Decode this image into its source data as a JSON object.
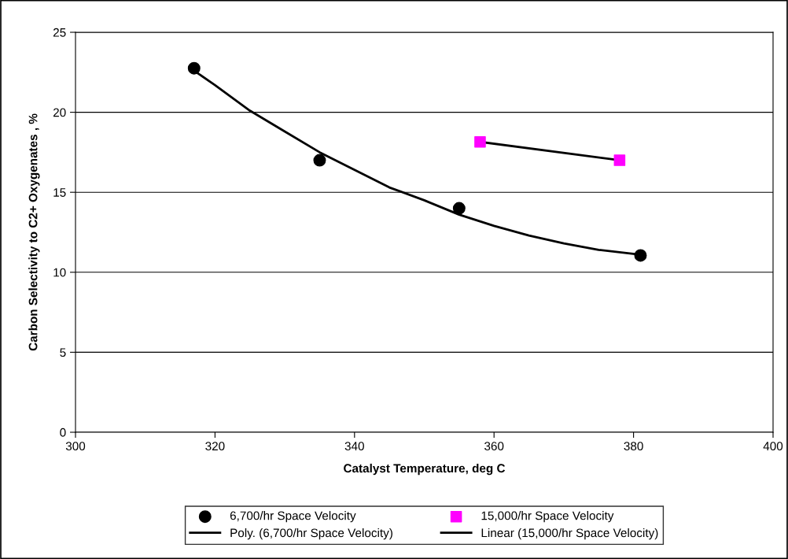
{
  "chart_data": {
    "type": "scatter",
    "xlabel": "Catalyst Temperature, deg C",
    "ylabel": "Carbon Selectivity to C2+ Oxygenates , %",
    "xlim": [
      300,
      400
    ],
    "xticks": [
      300,
      320,
      340,
      360,
      380,
      400
    ],
    "ylim": [
      0,
      25
    ],
    "yticks": [
      0,
      5,
      10,
      15,
      20,
      25
    ],
    "grid": "y",
    "legend": "bottom",
    "series": [
      {
        "name": "6,700/hr Space Velocity",
        "marker": "circle",
        "color": "#000000",
        "x": [
          317,
          335,
          355,
          381
        ],
        "values": [
          22.75,
          17.0,
          14.0,
          11.05
        ]
      },
      {
        "name": "Poly. (6,700/hr Space Velocity)",
        "type": "line",
        "marker": "none",
        "line_style": "solid",
        "color": "#000000",
        "x": [
          317,
          320,
          325,
          330,
          335,
          340,
          345,
          350,
          355,
          360,
          365,
          370,
          375,
          381
        ],
        "values": [
          22.6,
          21.7,
          20.1,
          18.8,
          17.5,
          16.4,
          15.3,
          14.5,
          13.6,
          12.9,
          12.3,
          11.8,
          11.4,
          11.1
        ]
      },
      {
        "name": "15,000/hr Space Velocity",
        "marker": "square",
        "color": "#ff00ff",
        "x": [
          358,
          378
        ],
        "values": [
          18.15,
          17.0
        ]
      },
      {
        "name": "Linear (15,000/hr Space Velocity)",
        "type": "line",
        "marker": "none",
        "line_style": "solid",
        "color": "#000000",
        "x": [
          358,
          378
        ],
        "values": [
          18.15,
          17.0
        ]
      }
    ]
  }
}
